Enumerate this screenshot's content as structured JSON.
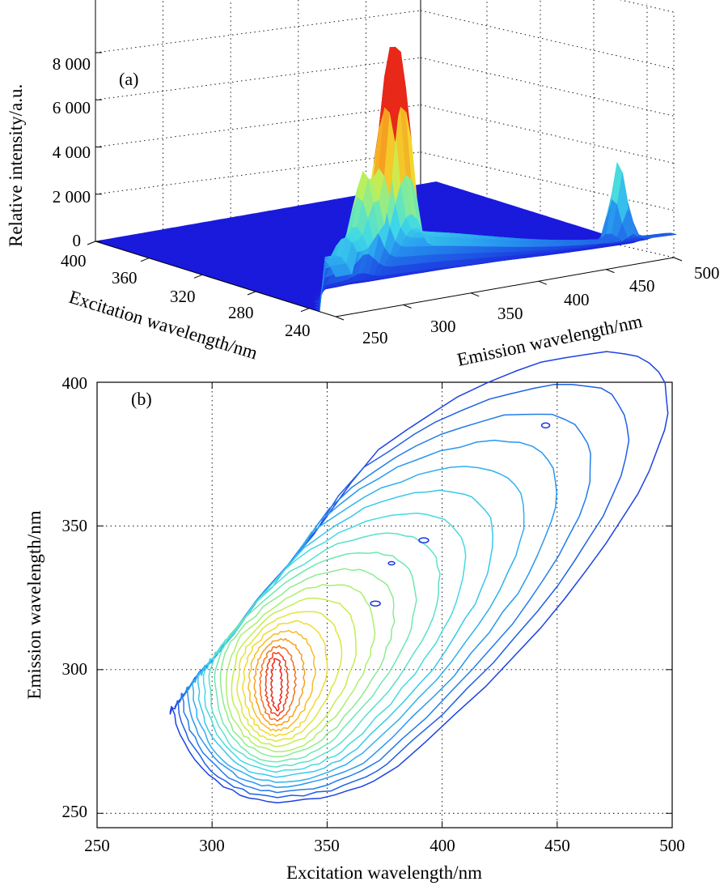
{
  "colors": {
    "surface_base": "#1a2cdc",
    "contour_scale": [
      "#1a1adc",
      "#1f5fe6",
      "#2aa0f0",
      "#3fd8e8",
      "#6fe8b0",
      "#b8f060",
      "#f0e030",
      "#f89a20",
      "#e82818"
    ],
    "grid": "#000000"
  },
  "chart_data": [
    {
      "panel_label": "(a)",
      "type": "surface",
      "zlabel": "Relative intensity/a.u.",
      "xlabel": "Emission wavelength/nm",
      "ylabel": "Excitation wavelength/nm",
      "ztick_labels": [
        "0",
        "2 000",
        "4 000",
        "6 000",
        "8 000"
      ],
      "xtick_labels": [
        "250",
        "300",
        "350",
        "400",
        "450",
        "500"
      ],
      "ytick_labels": [
        "240",
        "280",
        "320",
        "360",
        "400"
      ],
      "zlim": [
        0,
        8000
      ],
      "xlim": [
        250,
        500
      ],
      "ylim": [
        220,
        400
      ],
      "grid": true,
      "peaks": [
        {
          "emission": 300,
          "excitation": 228,
          "intensity": 8500
        },
        {
          "emission": 320,
          "excitation": 240,
          "intensity": 2700
        },
        {
          "emission": 470,
          "excitation": 230,
          "intensity": 4700
        }
      ]
    },
    {
      "panel_label": "(b)",
      "type": "contour",
      "xlabel": "Excitation wavelength/nm",
      "ylabel": "Emission wavelength/nm",
      "xtick_labels": [
        "250",
        "300",
        "350",
        "400",
        "450",
        "500"
      ],
      "ytick_labels": [
        "250",
        "300",
        "350",
        "400"
      ],
      "xlim": [
        250,
        500
      ],
      "ylim": [
        245,
        400
      ],
      "grid": true,
      "peak": {
        "excitation": 328,
        "emission": 295
      },
      "levels": 19
    }
  ]
}
